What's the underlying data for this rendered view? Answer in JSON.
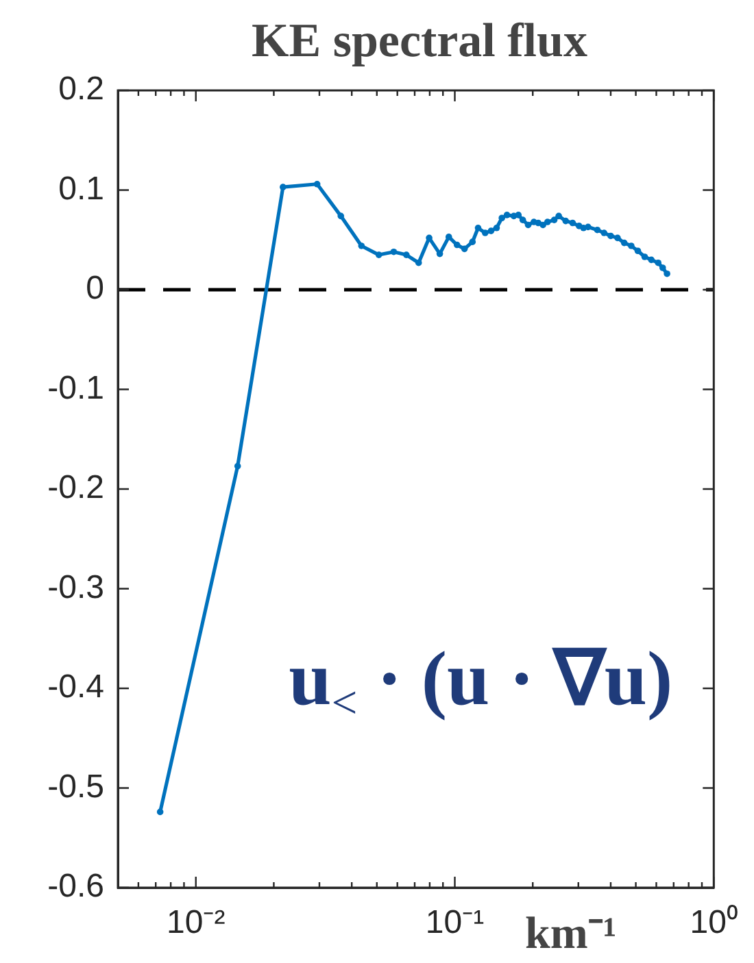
{
  "chart_data": {
    "type": "line",
    "title": "KE spectral flux",
    "xlabel": "km⁻¹",
    "annotations": [
      "u$_{<}$ · (u · ∇u)"
    ],
    "x": [
      0.00728,
      0.0145,
      0.0217,
      0.0294,
      0.0363,
      0.0436,
      0.0509,
      0.0581,
      0.065,
      0.0725,
      0.0796,
      0.0875,
      0.0948,
      0.102,
      0.109,
      0.117,
      0.123,
      0.131,
      0.138,
      0.145,
      0.152,
      0.159,
      0.169,
      0.176,
      0.183,
      0.192,
      0.202,
      0.21,
      0.219,
      0.228,
      0.242,
      0.252,
      0.268,
      0.285,
      0.302,
      0.314,
      0.327,
      0.355,
      0.377,
      0.4,
      0.425,
      0.451,
      0.48,
      0.509,
      0.541,
      0.574,
      0.61,
      0.635,
      0.66
    ],
    "values": [
      -0.524,
      -0.177,
      0.103,
      0.106,
      0.074,
      0.044,
      0.035,
      0.038,
      0.035,
      0.027,
      0.052,
      0.036,
      0.053,
      0.045,
      0.041,
      0.048,
      0.062,
      0.057,
      0.059,
      0.062,
      0.072,
      0.075,
      0.074,
      0.075,
      0.07,
      0.065,
      0.068,
      0.067,
      0.065,
      0.068,
      0.07,
      0.074,
      0.069,
      0.067,
      0.064,
      0.062,
      0.063,
      0.06,
      0.057,
      0.054,
      0.052,
      0.047,
      0.044,
      0.039,
      0.033,
      0.03,
      0.027,
      0.022,
      0.016
    ],
    "color": "#0072bd",
    "marker": "circle",
    "log": "x",
    "xlim": [
      0.005,
      1
    ],
    "xticks": [
      {
        "value": 0.006,
        "label": null
      },
      {
        "value": 0.007,
        "label": null
      },
      {
        "value": 0.008,
        "label": null
      },
      {
        "value": 0.009,
        "label": null
      },
      {
        "value": 0.01,
        "label": "10⁻²"
      },
      {
        "value": 0.02,
        "label": null
      },
      {
        "value": 0.03,
        "label": null
      },
      {
        "value": 0.04,
        "label": null
      },
      {
        "value": 0.05,
        "label": null
      },
      {
        "value": 0.06,
        "label": null
      },
      {
        "value": 0.07,
        "label": null
      },
      {
        "value": 0.08,
        "label": null
      },
      {
        "value": 0.09,
        "label": null
      },
      {
        "value": 0.1,
        "label": "10⁻¹"
      },
      {
        "value": 0.2,
        "label": null
      },
      {
        "value": 0.3,
        "label": null
      },
      {
        "value": 0.4,
        "label": null
      },
      {
        "value": 0.5,
        "label": null
      },
      {
        "value": 0.6,
        "label": null
      },
      {
        "value": 0.7,
        "label": null
      },
      {
        "value": 0.8,
        "label": null
      },
      {
        "value": 0.9,
        "label": null
      },
      {
        "value": 1,
        "label": "10⁰"
      }
    ],
    "ylim": [
      -0.6,
      0.2
    ],
    "yticks": [
      -0.6,
      -0.5,
      -0.4,
      -0.3,
      -0.2,
      -0.1,
      0,
      0.1,
      0.2
    ],
    "ref_lines": [
      {
        "axis": "y",
        "value": 0,
        "color": "#000000",
        "line_style": "dashed"
      }
    ]
  }
}
